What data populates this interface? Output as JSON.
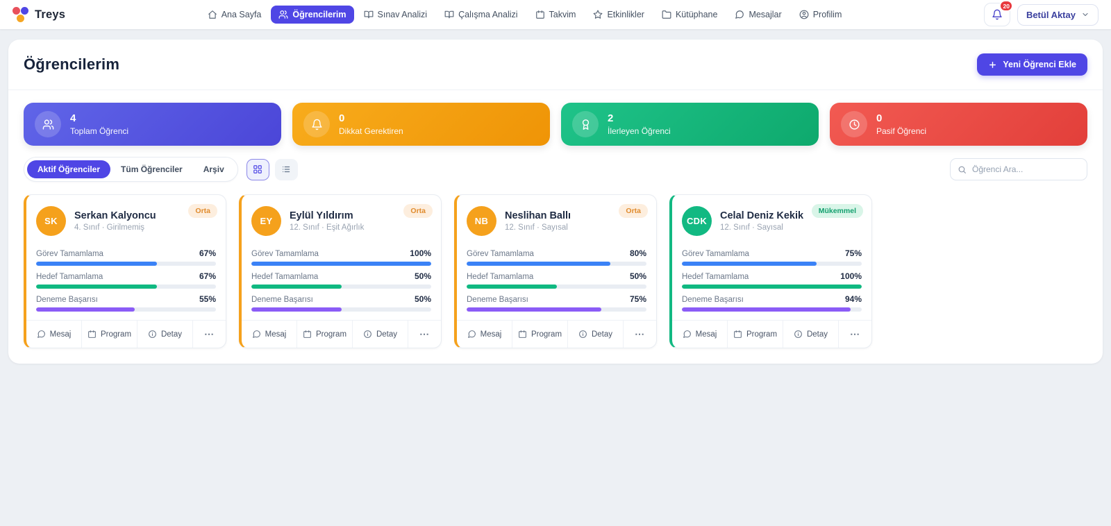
{
  "brand": {
    "name": "Treys"
  },
  "nav": {
    "items": [
      {
        "label": "Ana Sayfa",
        "active": false
      },
      {
        "label": "Öğrencilerim",
        "active": true
      },
      {
        "label": "Sınav Analizi",
        "active": false
      },
      {
        "label": "Çalışma Analizi",
        "active": false
      },
      {
        "label": "Takvim",
        "active": false
      },
      {
        "label": "Etkinlikler",
        "active": false
      },
      {
        "label": "Kütüphane",
        "active": false
      },
      {
        "label": "Mesajlar",
        "active": false
      },
      {
        "label": "Profilim",
        "active": false
      }
    ]
  },
  "notifications": {
    "badge": "20"
  },
  "user": {
    "name": "Betül Aktay"
  },
  "page": {
    "title": "Öğrencilerim",
    "add_student_button": "Yeni Öğrenci Ekle"
  },
  "stats": [
    {
      "value": "4",
      "label": "Toplam Öğrenci",
      "icon": "users-icon",
      "bg_from": "#6065e8",
      "bg_to": "#4b46d8"
    },
    {
      "value": "0",
      "label": "Dikkat Gerektiren",
      "icon": "bell-icon",
      "bg_from": "#f8ac1c",
      "bg_to": "#ef9406"
    },
    {
      "value": "2",
      "label": "İlerleyen Öğrenci",
      "icon": "award-icon",
      "bg_from": "#1fc389",
      "bg_to": "#0ea96d"
    },
    {
      "value": "0",
      "label": "Pasif Öğrenci",
      "icon": "clock-icon",
      "bg_from": "#f25a52",
      "bg_to": "#e23f3a"
    }
  ],
  "filters": {
    "tabs": [
      {
        "label": "Aktif Öğrenciler",
        "active": true
      },
      {
        "label": "Tüm Öğrenciler",
        "active": false
      },
      {
        "label": "Arşiv",
        "active": false
      }
    ],
    "search_placeholder": "Öğrenci Ara..."
  },
  "metric_labels": {
    "task": "Görev Tamamlama",
    "goal": "Hedef Tamamlama",
    "exam": "Deneme Başarısı"
  },
  "colors": {
    "task_bar": "#3b82f6",
    "goal_bar": "#10b981",
    "exam_bar": "#8b5cf6",
    "accent": "#4f46e5"
  },
  "card_actions": {
    "message": "Mesaj",
    "program": "Program",
    "detail": "Detay",
    "more": "⋯"
  },
  "students": [
    {
      "initials": "SK",
      "name": "Serkan Kalyoncu",
      "meta": "4. Sınıf · Girilmemiş",
      "badge": "Orta",
      "badge_bg": "#fdeede",
      "badge_color": "#e08b2d",
      "avatar_bg": "#f5a11c",
      "accent": "#f5a11c",
      "task": "67%",
      "goal": "67%",
      "exam": "55%"
    },
    {
      "initials": "EY",
      "name": "Eylül Yıldırım",
      "meta": "12. Sınıf · Eşit Ağırlık",
      "badge": "Orta",
      "badge_bg": "#fdeede",
      "badge_color": "#e08b2d",
      "avatar_bg": "#f5a11c",
      "accent": "#f5a11c",
      "task": "100%",
      "goal": "50%",
      "exam": "50%"
    },
    {
      "initials": "NB",
      "name": "Neslihan Ballı",
      "meta": "12. Sınıf · Sayısal",
      "badge": "Orta",
      "badge_bg": "#fdeede",
      "badge_color": "#e08b2d",
      "avatar_bg": "#f5a11c",
      "accent": "#f5a11c",
      "task": "80%",
      "goal": "50%",
      "exam": "75%"
    },
    {
      "initials": "CDK",
      "name": "Celal Deniz Kekik",
      "meta": "12. Sınıf · Sayısal",
      "badge": "Mükemmel",
      "badge_bg": "#d9f5e8",
      "badge_color": "#13a06e",
      "avatar_bg": "#12b982",
      "accent": "#12b982",
      "task": "75%",
      "goal": "100%",
      "exam": "94%"
    }
  ]
}
